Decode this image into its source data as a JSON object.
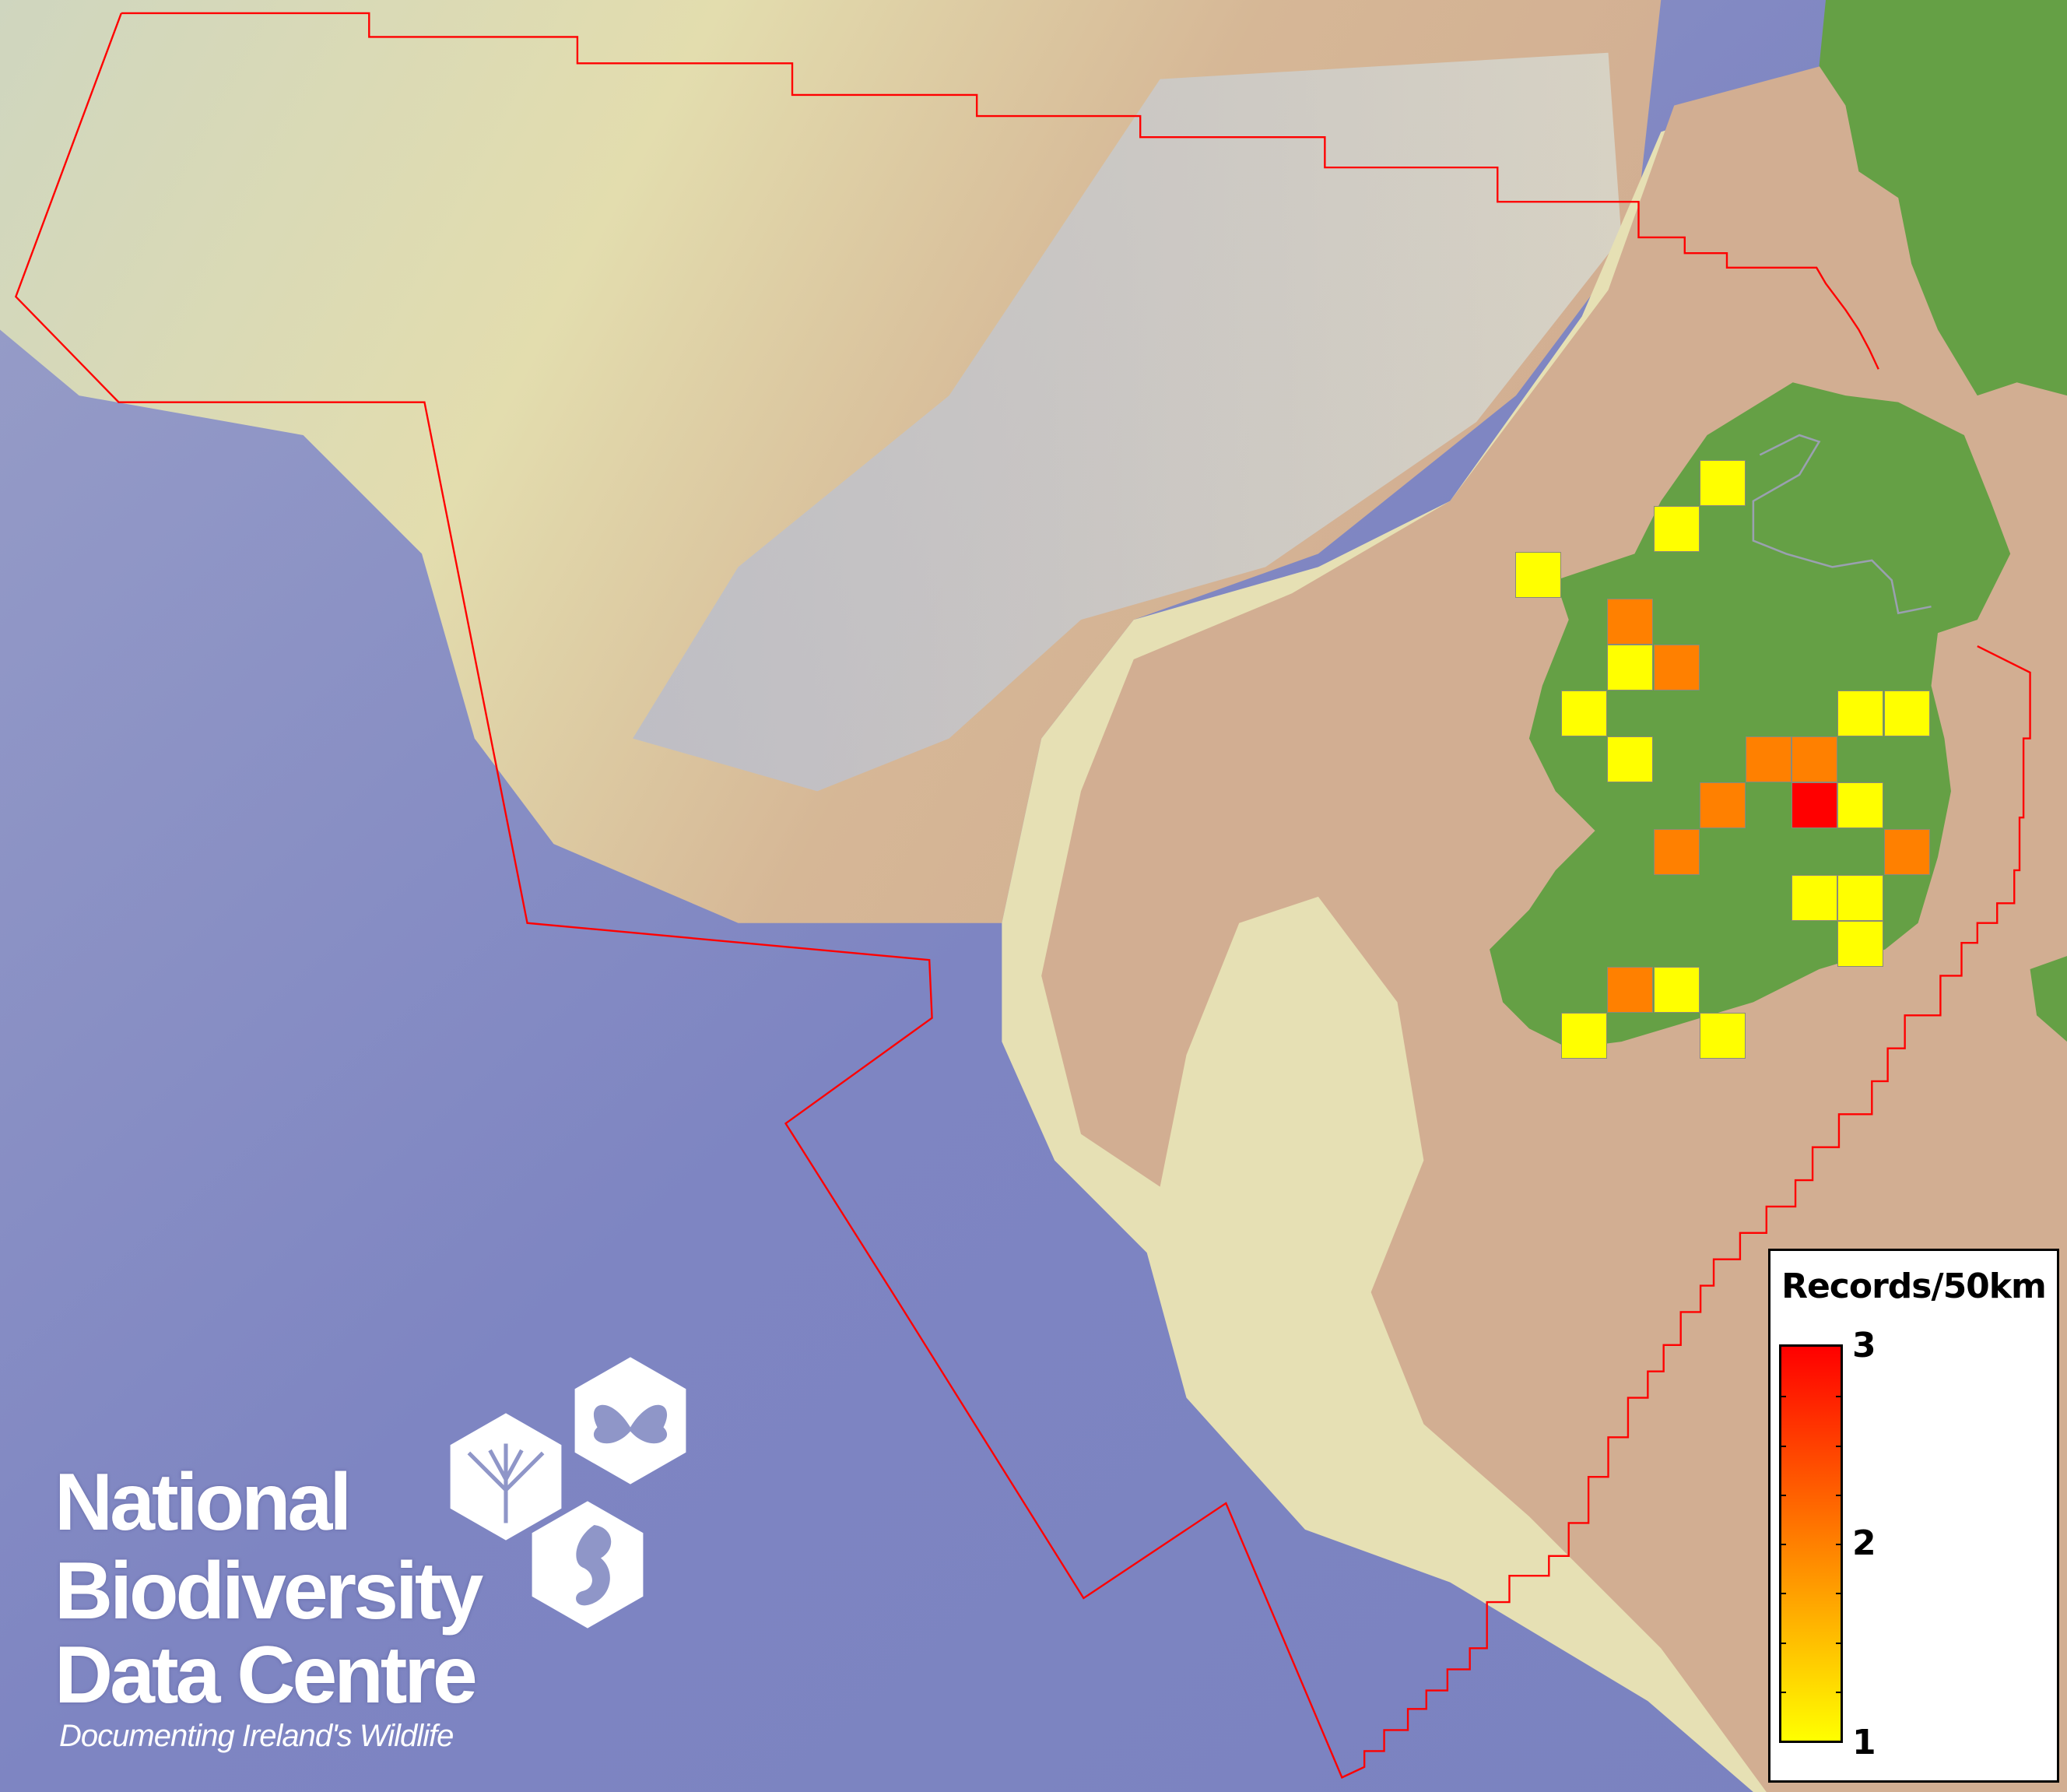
{
  "map": {
    "colors": {
      "deep_ocean": "#7f86c4",
      "continental_slope": "#c8c9c0",
      "upper_shelf": "#e2dcae",
      "shelf": "#d2ae92",
      "land": "#65a045",
      "boundary_line": "#ff0000",
      "border_line": "#9aa0b0"
    },
    "grid_resolution": "50km",
    "records_grid": [
      [
        null,
        null,
        null,
        null,
        1,
        null,
        null,
        null,
        null
      ],
      [
        null,
        null,
        null,
        1,
        null,
        null,
        null,
        null,
        null
      ],
      [
        1,
        null,
        null,
        null,
        null,
        null,
        null,
        null,
        null
      ],
      [
        null,
        null,
        2,
        null,
        null,
        null,
        null,
        null,
        null
      ],
      [
        null,
        null,
        1,
        2,
        null,
        null,
        null,
        null,
        null
      ],
      [
        null,
        1,
        null,
        null,
        null,
        null,
        null,
        1,
        1
      ],
      [
        null,
        null,
        1,
        null,
        null,
        2,
        2,
        null,
        null
      ],
      [
        null,
        null,
        null,
        null,
        2,
        null,
        3,
        1,
        null
      ],
      [
        null,
        null,
        null,
        2,
        null,
        null,
        null,
        null,
        2
      ],
      [
        null,
        null,
        null,
        null,
        null,
        null,
        1,
        1,
        null
      ],
      [
        null,
        null,
        null,
        null,
        null,
        null,
        null,
        1,
        null
      ],
      [
        null,
        null,
        2,
        1,
        null,
        null,
        null,
        null,
        null
      ],
      [
        null,
        1,
        null,
        null,
        1,
        null,
        null,
        null,
        null
      ]
    ],
    "value_colors": {
      "1": "#ffff00",
      "2": "#ff8000",
      "3": "#ff0000"
    }
  },
  "legend": {
    "title": "Records/50km",
    "min_label": "1",
    "mid_label": "2",
    "max_label": "3",
    "min_color": "#ffff00",
    "mid_color": "#ff8000",
    "max_color": "#ff0000"
  },
  "logo": {
    "line1": "National",
    "line2": "Biodiversity",
    "line3": "Data Centre",
    "tagline": "Documenting Ireland's Wildlife"
  }
}
